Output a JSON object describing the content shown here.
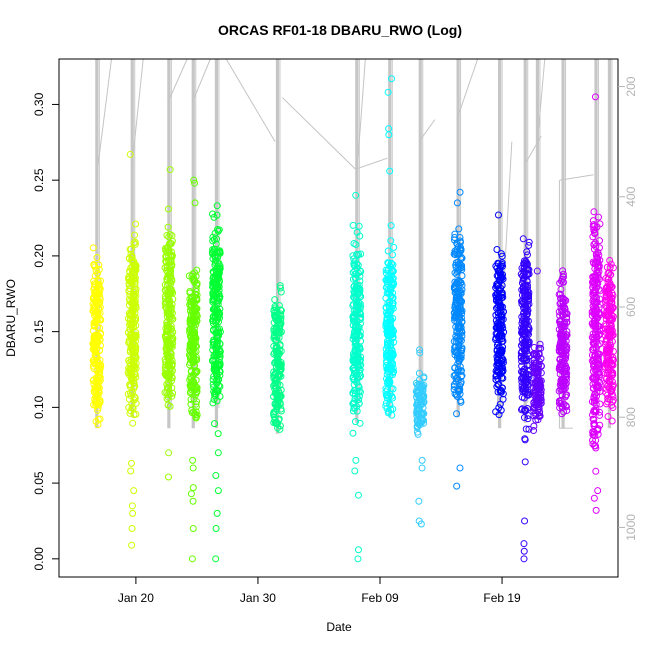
{
  "chart_data": {
    "type": "scatter",
    "title": "ORCAS RF01-18 DBARU_RWO (Log)",
    "xlabel": "Date",
    "ylabel": "DBARU_RWO",
    "x_start": "2016-01-15",
    "xlim_days": [
      -1.3,
      44.5
    ],
    "ylim": [
      -0.012,
      0.33
    ],
    "y_ticks": [
      "0.00",
      "0.05",
      "0.10",
      "0.15",
      "0.20",
      "0.25",
      "0.30"
    ],
    "x_ticks": [
      {
        "label": "Jan 20",
        "day": 5
      },
      {
        "label": "Jan 30",
        "day": 15
      },
      {
        "label": "Feb 09",
        "day": 25
      },
      {
        "label": "Feb 19",
        "day": 35
      }
    ],
    "right_axis": {
      "ticks": [
        "200",
        "400",
        "600",
        "800",
        "1000"
      ],
      "ylim": [
        1090,
        150
      ],
      "color": "#b3b3b3"
    },
    "series": [
      {
        "day": 1.8,
        "color": "#FFFF00",
        "dense": [
          0.075,
          0.21
        ],
        "outliers": []
      },
      {
        "day": 4.7,
        "color": "#CCFF00",
        "dense": [
          0.08,
          0.23
        ],
        "outliers": [
          0.267,
          0.063,
          0.058,
          0.045,
          0.035,
          0.03,
          0.02,
          0.009
        ]
      },
      {
        "day": 7.7,
        "color": "#99FF00",
        "dense": [
          0.078,
          0.24
        ],
        "outliers": [
          0.257,
          0.07,
          0.054
        ]
      },
      {
        "day": 9.7,
        "color": "#66FF00",
        "dense": [
          0.075,
          0.205
        ],
        "outliers": [
          0.25,
          0.248,
          0.235,
          0.065,
          0.06,
          0.047,
          0.043,
          0.038,
          0.02,
          0.0
        ]
      },
      {
        "day": 11.6,
        "color": "#00FF33",
        "dense": [
          0.075,
          0.245
        ],
        "outliers": [
          0.07,
          0.055,
          0.045,
          0.03,
          0.02,
          0.0
        ]
      },
      {
        "day": 16.6,
        "color": "#00FF88",
        "dense": [
          0.07,
          0.19
        ],
        "outliers": []
      },
      {
        "day": 23.1,
        "color": "#00FFCC",
        "dense": [
          0.075,
          0.227
        ],
        "outliers": [
          0.24,
          0.065,
          0.058,
          0.042,
          0.006,
          0.0
        ]
      },
      {
        "day": 25.8,
        "color": "#00FFFF",
        "dense": [
          0.078,
          0.22
        ],
        "outliers": [
          0.317,
          0.308,
          0.284,
          0.28,
          0.256,
          0.22,
          0.21,
          0.135
        ]
      },
      {
        "day": 28.3,
        "color": "#33CCFF",
        "dense": [
          0.078,
          0.125
        ],
        "outliers": [
          0.138,
          0.136,
          0.065,
          0.06,
          0.038,
          0.025,
          0.023
        ]
      },
      {
        "day": 31.4,
        "color": "#0088FF",
        "dense": [
          0.085,
          0.23
        ],
        "outliers": [
          0.242,
          0.235,
          0.06,
          0.048
        ]
      },
      {
        "day": 34.8,
        "color": "#0000FF",
        "dense": [
          0.09,
          0.215
        ],
        "outliers": [
          0.227
        ]
      },
      {
        "day": 36.9,
        "color": "#3300FF",
        "dense": [
          0.07,
          0.225
        ],
        "outliers": [
          0.064,
          0.025,
          0.01,
          0.005,
          0.0
        ]
      },
      {
        "day": 37.9,
        "color": "#6600FF",
        "dense": [
          0.08,
          0.15
        ],
        "outliers": [
          0.19
        ]
      },
      {
        "day": 40.0,
        "color": "#BB00FF",
        "dense": [
          0.08,
          0.2
        ],
        "outliers": []
      },
      {
        "day": 42.7,
        "color": "#DD00FF",
        "dense": [
          0.05,
          0.24
        ],
        "outliers": [
          0.305,
          0.045,
          0.04,
          0.032
        ]
      },
      {
        "day": 43.8,
        "color": "#FF00EE",
        "dense": [
          0.08,
          0.21
        ],
        "outliers": []
      }
    ]
  }
}
